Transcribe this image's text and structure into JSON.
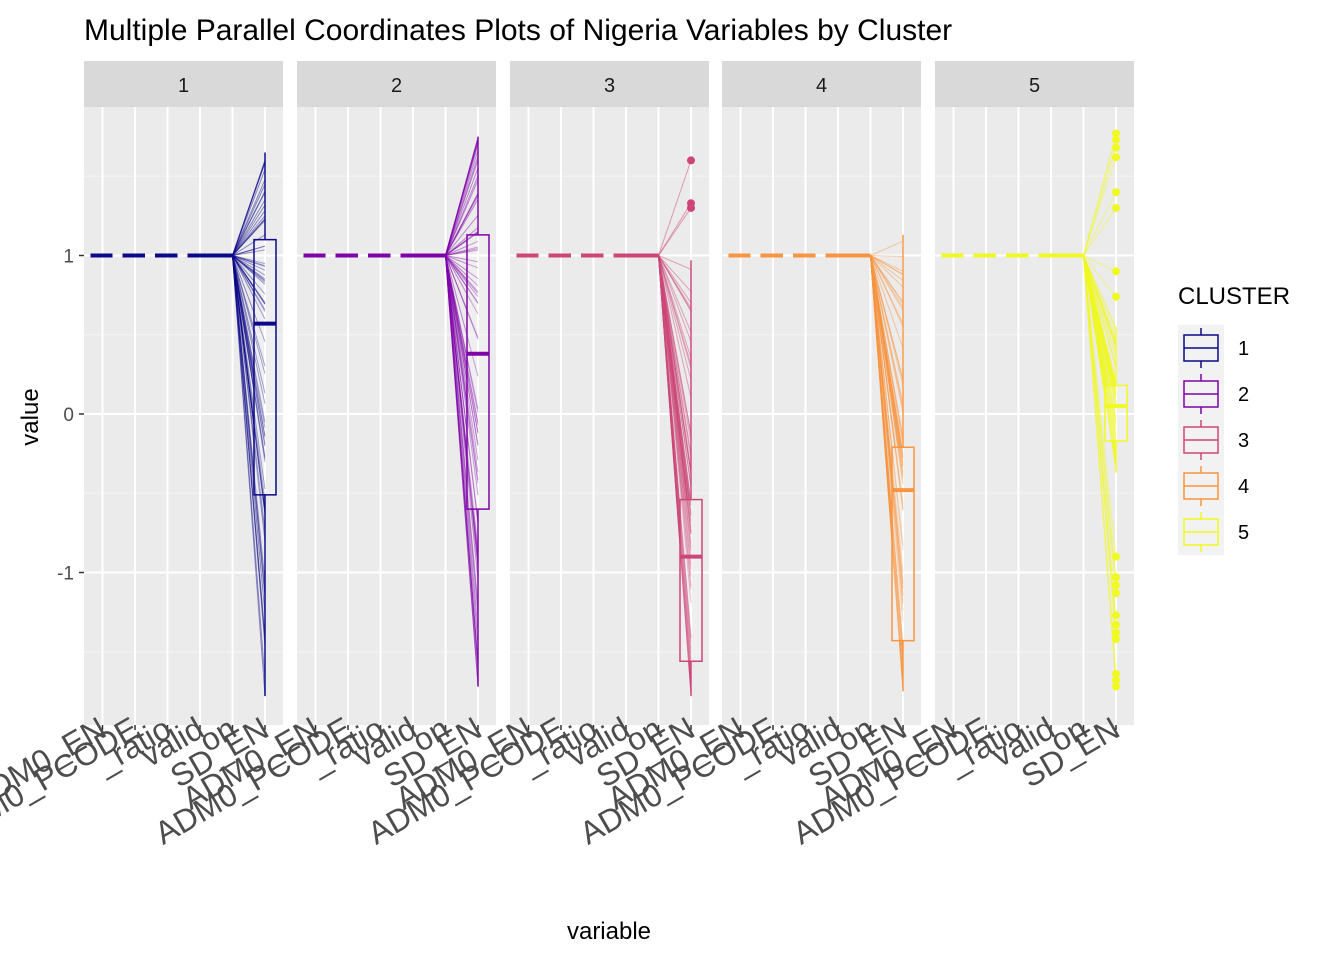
{
  "chart_data": {
    "type": "parallel-coordinates-boxplot",
    "title": "Multiple Parallel Coordinates Plots of Nigeria Variables by Cluster",
    "xlabel": "variable",
    "ylabel": "value",
    "variables": [
      "ADM0_EN",
      "ADM0_PCODE",
      "_ratio",
      "valid",
      "on",
      "SD_EN"
    ],
    "y_ticks": [
      -1,
      0,
      1
    ],
    "ylim": [
      -1.9,
      2.05
    ],
    "grid": true,
    "legend": {
      "title": "CLUSTER",
      "position": "right"
    },
    "facets": [
      {
        "label": "1",
        "color": "#0D0887",
        "constant_value": 1,
        "box": {
          "q1": -0.51,
          "median": 0.57,
          "q3": 1.1,
          "whisker_low": -1.78,
          "whisker_high": 1.65
        },
        "outliers": []
      },
      {
        "label": "2",
        "color": "#7E03A8",
        "constant_value": 1,
        "box": {
          "q1": -0.6,
          "median": 0.38,
          "q3": 1.13,
          "whisker_low": -1.72,
          "whisker_high": 1.75
        },
        "outliers": []
      },
      {
        "label": "3",
        "color": "#CC4778",
        "constant_value": 1,
        "box": {
          "q1": -1.56,
          "median": -0.9,
          "q3": -0.54,
          "whisker_low": -1.78,
          "whisker_high": 0.97
        },
        "outliers": [
          1.3,
          1.33,
          1.6
        ]
      },
      {
        "label": "4",
        "color": "#F89540",
        "constant_value": 1,
        "box": {
          "q1": -1.43,
          "median": -0.48,
          "q3": -0.21,
          "whisker_low": -1.75,
          "whisker_high": 1.13
        },
        "outliers": []
      },
      {
        "label": "5",
        "color": "#F0F921",
        "constant_value": 1,
        "box": {
          "q1": -0.17,
          "median": 0.05,
          "q3": 0.18,
          "whisker_low": -0.37,
          "whisker_high": 0.55
        },
        "outliers": [
          1.77,
          1.73,
          1.68,
          1.62,
          1.4,
          1.3,
          0.9,
          0.74,
          -0.9,
          -1.03,
          -1.08,
          -1.13,
          -1.27,
          -1.33,
          -1.38,
          -1.42,
          -1.64,
          -1.68,
          -1.72
        ]
      }
    ]
  }
}
